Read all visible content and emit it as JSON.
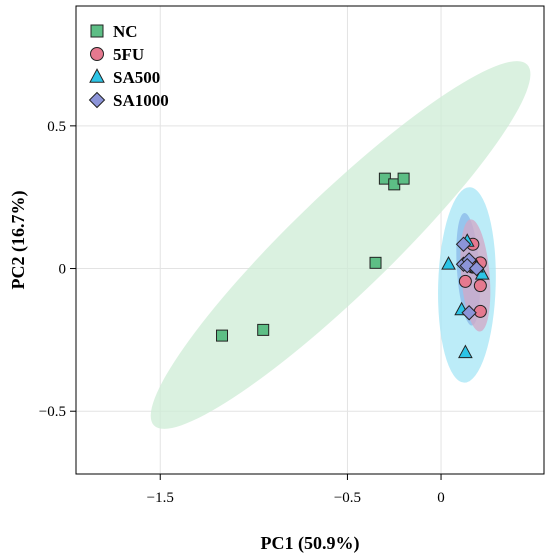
{
  "chart_data": {
    "type": "scatter",
    "xlabel": "PC1 (50.9%)",
    "ylabel": "PC2 (16.7%)",
    "xlim": [
      -1.95,
      0.55
    ],
    "ylim": [
      -0.72,
      0.92
    ],
    "xticks": [
      -1.5,
      -0.5,
      0
    ],
    "xtick_labels": [
      "−1.5",
      "−0.5",
      "0"
    ],
    "yticks": [
      -0.5,
      0,
      0.5
    ],
    "ytick_labels": [
      "−0.5",
      "0",
      "0.5"
    ],
    "grid": true,
    "legend_position": "top-left",
    "series": [
      {
        "name": "NC",
        "marker": "square",
        "color": "#5dbe85",
        "ellipse_color": "#cdecd5",
        "points": [
          [
            -1.17,
            -0.235
          ],
          [
            -0.95,
            -0.215
          ],
          [
            -0.35,
            0.02
          ],
          [
            -0.3,
            0.315
          ],
          [
            -0.25,
            0.295
          ],
          [
            -0.2,
            0.315
          ]
        ]
      },
      {
        "name": "5FU",
        "marker": "circle",
        "color": "#e5798f",
        "ellipse_color": "#d3a7c6",
        "points": [
          [
            0.13,
            -0.045
          ],
          [
            0.17,
            0.085
          ],
          [
            0.21,
            0.02
          ],
          [
            0.21,
            -0.06
          ],
          [
            0.21,
            -0.15
          ],
          [
            0.17,
            0.005
          ]
        ]
      },
      {
        "name": "SA500",
        "marker": "triangle",
        "color": "#2cc4e6",
        "ellipse_color": "#a6e5f6",
        "points": [
          [
            0.04,
            0.015
          ],
          [
            0.11,
            -0.145
          ],
          [
            0.14,
            0.095
          ],
          [
            0.13,
            -0.295
          ],
          [
            0.22,
            -0.02
          ],
          [
            0.19,
            0.005
          ]
        ]
      },
      {
        "name": "SA1000",
        "marker": "diamond",
        "color": "#8c94d8",
        "ellipse_color": "#8ab8ea",
        "points": [
          [
            0.12,
            0.085
          ],
          [
            0.12,
            0.015
          ],
          [
            0.15,
            0.03
          ],
          [
            0.14,
            0.01
          ],
          [
            0.19,
            0.0
          ],
          [
            0.15,
            -0.155
          ]
        ]
      }
    ]
  }
}
